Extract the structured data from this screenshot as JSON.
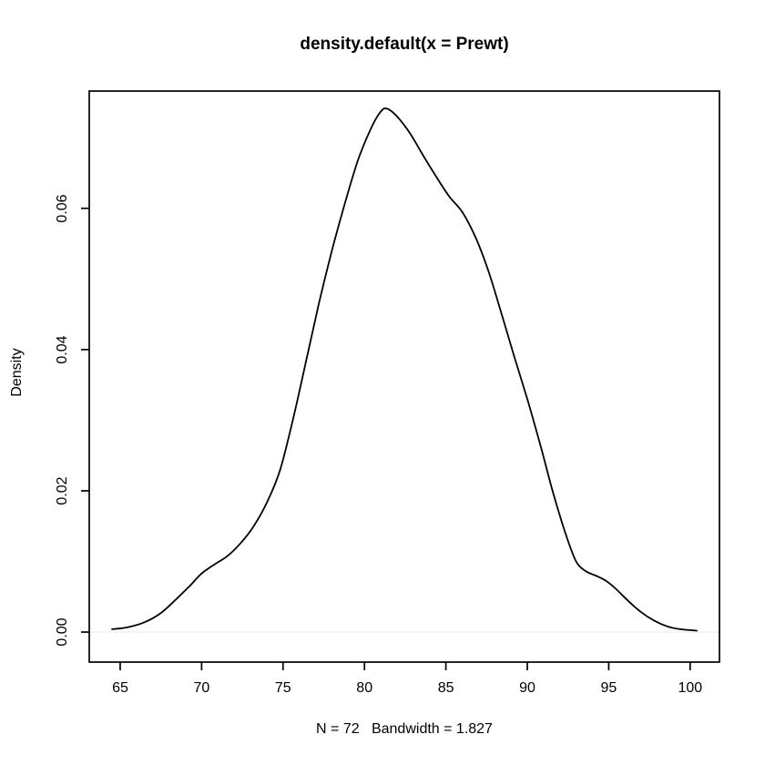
{
  "chart_data": {
    "type": "line",
    "title": "density.default(x = Prewt)",
    "xlabel": "N = 72   Bandwidth = 1.827",
    "ylabel": "Density",
    "n": 72,
    "bandwidth": 1.827,
    "x_ticks": [
      "65",
      "70",
      "75",
      "80",
      "85",
      "90",
      "95",
      "100"
    ],
    "x_tick_values": [
      65,
      70,
      75,
      80,
      85,
      90,
      95,
      100
    ],
    "y_ticks": [
      "0.00",
      "0.02",
      "0.04",
      "0.06"
    ],
    "y_tick_values": [
      0.0,
      0.02,
      0.04,
      0.06
    ],
    "xlim": [
      63.1,
      101.8
    ],
    "ylim": [
      -0.00425,
      0.0766
    ],
    "grid": false,
    "legend": "none",
    "line_color": "#000000",
    "box_color": "#000000",
    "text_color": "#000000",
    "zero_line_color": "#f0f0f0",
    "background": "#ffffff",
    "series": [
      {
        "name": "density of Prewt",
        "points": [
          [
            64.5,
            0.0004
          ],
          [
            65.5,
            0.0007
          ],
          [
            66.5,
            0.0014
          ],
          [
            67.5,
            0.0027
          ],
          [
            68.5,
            0.0048
          ],
          [
            69.3,
            0.0066
          ],
          [
            70.0,
            0.0083
          ],
          [
            70.8,
            0.0096
          ],
          [
            71.6,
            0.0108
          ],
          [
            72.4,
            0.0126
          ],
          [
            73.2,
            0.015
          ],
          [
            74.0,
            0.0183
          ],
          [
            74.8,
            0.0228
          ],
          [
            75.6,
            0.03
          ],
          [
            76.4,
            0.0382
          ],
          [
            77.2,
            0.0465
          ],
          [
            78.0,
            0.054
          ],
          [
            78.8,
            0.0607
          ],
          [
            79.6,
            0.0668
          ],
          [
            80.4,
            0.0713
          ],
          [
            81.0,
            0.0737
          ],
          [
            81.4,
            0.0741
          ],
          [
            82.0,
            0.073
          ],
          [
            82.8,
            0.0706
          ],
          [
            83.6,
            0.0675
          ],
          [
            84.4,
            0.0645
          ],
          [
            85.2,
            0.0617
          ],
          [
            86.0,
            0.0595
          ],
          [
            86.8,
            0.056
          ],
          [
            87.6,
            0.0512
          ],
          [
            88.4,
            0.0452
          ],
          [
            89.2,
            0.039
          ],
          [
            90.0,
            0.033
          ],
          [
            90.8,
            0.0265
          ],
          [
            91.6,
            0.0196
          ],
          [
            92.4,
            0.0136
          ],
          [
            93.0,
            0.01
          ],
          [
            93.6,
            0.0086
          ],
          [
            94.2,
            0.008
          ],
          [
            94.8,
            0.0073
          ],
          [
            95.4,
            0.0062
          ],
          [
            96.2,
            0.0044
          ],
          [
            97.0,
            0.0028
          ],
          [
            97.8,
            0.0016
          ],
          [
            98.6,
            0.0008
          ],
          [
            99.4,
            0.0004
          ],
          [
            100.4,
            0.0002
          ]
        ]
      }
    ]
  }
}
